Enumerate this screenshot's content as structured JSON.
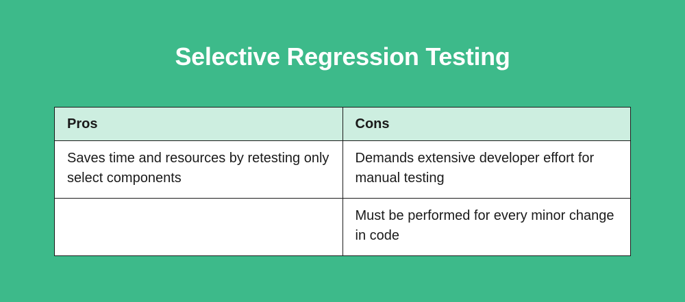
{
  "title": "Selective Regression Testing",
  "colors": {
    "background": "#3dba8a",
    "header_bg": "#cdeee0"
  },
  "table": {
    "headers": [
      "Pros",
      "Cons"
    ],
    "rows": [
      [
        "Saves time and resources by retesting only select components",
        "Demands extensive developer effort for manual testing"
      ],
      [
        "",
        "Must be performed for every minor change in code"
      ]
    ]
  }
}
